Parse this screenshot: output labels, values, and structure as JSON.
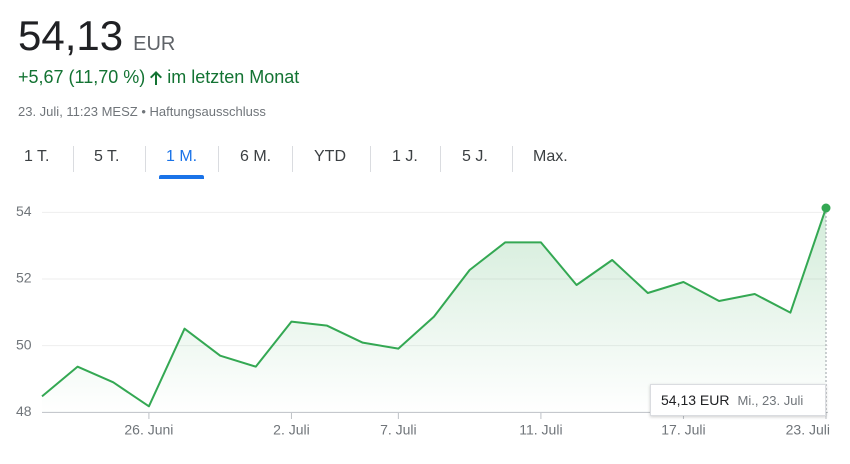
{
  "header": {
    "price": "54,13",
    "currency": "EUR",
    "change": "+5,67 (11,70 %)",
    "period": "im letzten Monat",
    "timestamp": "23. Juli, 11:23 MESZ",
    "disclaimer": "Haftungsausschluss"
  },
  "tabs": {
    "items": [
      "1 T.",
      "5 T.",
      "1 M.",
      "6 M.",
      "YTD",
      "1 J.",
      "5 J.",
      "Max."
    ],
    "active": 2
  },
  "tooltip": {
    "value": "54,13 EUR",
    "date": "Mi., 23. Juli"
  },
  "chart_data": {
    "type": "line",
    "categories": [
      null,
      null,
      null,
      "26. Juni",
      null,
      null,
      null,
      "2. Juli",
      null,
      null,
      "7. Juli",
      null,
      null,
      null,
      "11. Juli",
      null,
      null,
      null,
      "17. Juli",
      null,
      null,
      null,
      "23. Juli"
    ],
    "series": [
      {
        "color": "#34a853",
        "values": [
          48.48,
          49.37,
          48.9,
          48.18,
          50.51,
          49.7,
          49.37,
          50.72,
          50.6,
          50.09,
          49.91,
          50.87,
          52.27,
          53.1,
          53.1,
          51.82,
          52.57,
          51.58,
          51.91,
          51.34,
          51.55,
          50.99,
          54.13
        ]
      }
    ],
    "ylim": [
      47.8,
      54.4
    ],
    "yticks": [
      48,
      50,
      52,
      54
    ],
    "grid": true
  }
}
